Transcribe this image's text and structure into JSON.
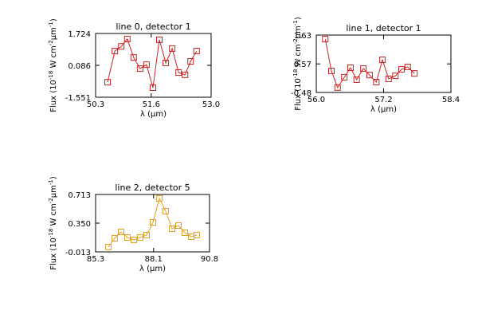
{
  "chart_data": [
    {
      "type": "line",
      "title": "line 0, detector 1",
      "xlabel": "λ (μm)",
      "ylabel": [
        "Flux (10",
        "-18",
        " W cm",
        "-2",
        "μm",
        "-1",
        ")"
      ],
      "x": [
        50.58,
        50.75,
        50.9,
        51.04,
        51.19,
        51.34,
        51.49,
        51.64,
        51.79,
        51.94,
        52.09,
        52.24,
        52.39,
        52.52,
        52.66
      ],
      "series": [
        {
          "color": "#cc2222",
          "values": [
            -0.78,
            0.82,
            1.06,
            1.44,
            0.49,
            -0.08,
            0.12,
            -1.06,
            1.4,
            0.21,
            0.95,
            -0.28,
            -0.4,
            0.29,
            0.82
          ]
        }
      ],
      "xlim": [
        50.3,
        53.0
      ],
      "xticks": [
        50.3,
        51.6,
        {
          "value": 53.0,
          "label": "53.0"
        }
      ],
      "ylim": [
        -1.551,
        1.724
      ],
      "yticks": [
        -1.551,
        0.086,
        1.724
      ]
    },
    {
      "type": "line",
      "title": "line 1, detector 1",
      "xlabel": "λ (μm)",
      "ylabel": [
        "Flux (10",
        "-18",
        " W cm",
        "-2",
        "μm",
        "-1",
        ")"
      ],
      "x": [
        56.16,
        56.27,
        56.38,
        56.5,
        56.61,
        56.72,
        56.84,
        56.95,
        57.07,
        57.18,
        57.29,
        57.41,
        57.52,
        57.63,
        57.75
      ],
      "series": [
        {
          "color": "#cc2222",
          "values": [
            1.48,
            0.31,
            -0.3,
            0.08,
            0.43,
            -0.01,
            0.4,
            0.16,
            -0.1,
            0.72,
            0.02,
            0.13,
            0.37,
            0.46,
            0.22
          ]
        }
      ],
      "xlim": [
        56.0,
        58.4
      ],
      "xticks": [
        {
          "value": 56.0,
          "label": "56.0"
        },
        57.2,
        58.4
      ],
      "ylim": [
        -0.48,
        1.63
      ],
      "yticks": [
        -0.48,
        0.57,
        1.63
      ]
    },
    {
      "type": "line",
      "title": "line 2, detector 5",
      "xlabel": "λ (μm)",
      "ylabel": [
        "Flux (10",
        "-18",
        " W cm",
        "-2",
        "μm",
        "-1",
        ")"
      ],
      "x": [
        85.92,
        86.22,
        86.53,
        86.84,
        87.15,
        87.45,
        87.76,
        88.07,
        88.38,
        88.68,
        88.99,
        89.3,
        89.61,
        89.92,
        90.18
      ],
      "series": [
        {
          "color": "#e0a020",
          "values": [
            0.048,
            0.159,
            0.239,
            0.169,
            0.138,
            0.169,
            0.199,
            0.36,
            0.663,
            0.502,
            0.28,
            0.32,
            0.229,
            0.179,
            0.199
          ]
        }
      ],
      "xlim": [
        85.3,
        90.8
      ],
      "xticks": [
        85.3,
        88.1,
        90.8
      ],
      "ylim": [
        -0.013,
        0.713
      ],
      "yticks": [
        -0.013,
        {
          "value": 0.35,
          "label": "0.350"
        },
        0.713
      ]
    }
  ]
}
